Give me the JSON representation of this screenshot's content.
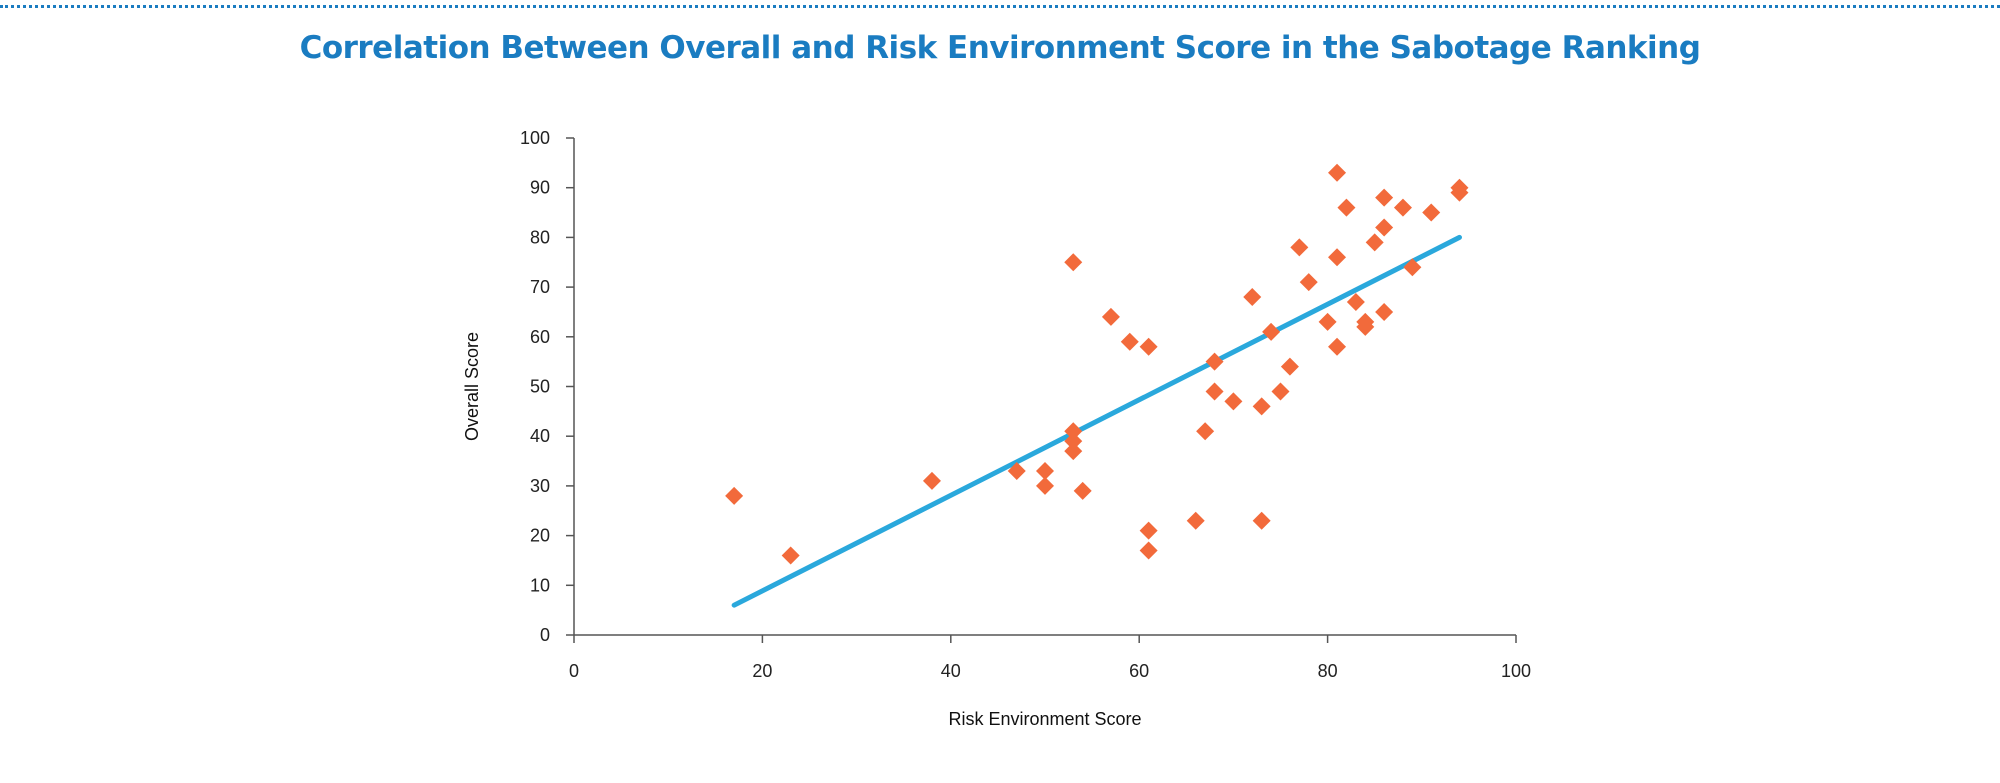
{
  "chart_data": {
    "type": "scatter",
    "title": "Correlation Between Overall and Risk Environment Score in the Sabotage Ranking",
    "xlabel": "Risk Environment Score",
    "ylabel": "Overall Score",
    "xlim": [
      0,
      100
    ],
    "ylim": [
      0,
      100
    ],
    "xticks": [
      0,
      20,
      40,
      60,
      80,
      100
    ],
    "yticks": [
      0,
      10,
      20,
      30,
      40,
      50,
      60,
      70,
      80,
      90,
      100
    ],
    "grid": false,
    "legend": "none",
    "series": [
      {
        "marker": "diamond",
        "color": "#f26a3b",
        "points": [
          [
            17,
            28
          ],
          [
            23,
            16
          ],
          [
            38,
            31
          ],
          [
            47,
            33
          ],
          [
            50,
            33
          ],
          [
            50,
            30
          ],
          [
            53,
            75
          ],
          [
            53,
            41
          ],
          [
            53,
            39
          ],
          [
            53,
            37
          ],
          [
            54,
            29
          ],
          [
            57,
            64
          ],
          [
            59,
            59
          ],
          [
            61,
            58
          ],
          [
            61,
            21
          ],
          [
            61,
            17
          ],
          [
            66,
            23
          ],
          [
            67,
            41
          ],
          [
            68,
            55
          ],
          [
            68,
            49
          ],
          [
            70,
            47
          ],
          [
            72,
            68
          ],
          [
            73,
            46
          ],
          [
            73,
            23
          ],
          [
            74,
            61
          ],
          [
            75,
            49
          ],
          [
            76,
            54
          ],
          [
            77,
            78
          ],
          [
            78,
            71
          ],
          [
            80,
            63
          ],
          [
            81,
            93
          ],
          [
            81,
            76
          ],
          [
            81,
            58
          ],
          [
            82,
            86
          ],
          [
            83,
            67
          ],
          [
            84,
            63
          ],
          [
            84,
            62
          ],
          [
            85,
            79
          ],
          [
            86,
            88
          ],
          [
            86,
            82
          ],
          [
            86,
            65
          ],
          [
            88,
            86
          ],
          [
            89,
            74
          ],
          [
            91,
            85
          ],
          [
            94,
            90
          ],
          [
            94,
            89
          ]
        ]
      }
    ],
    "trendline": {
      "color": "#2aa8dc",
      "points": [
        [
          17,
          6
        ],
        [
          94,
          80
        ]
      ]
    }
  }
}
